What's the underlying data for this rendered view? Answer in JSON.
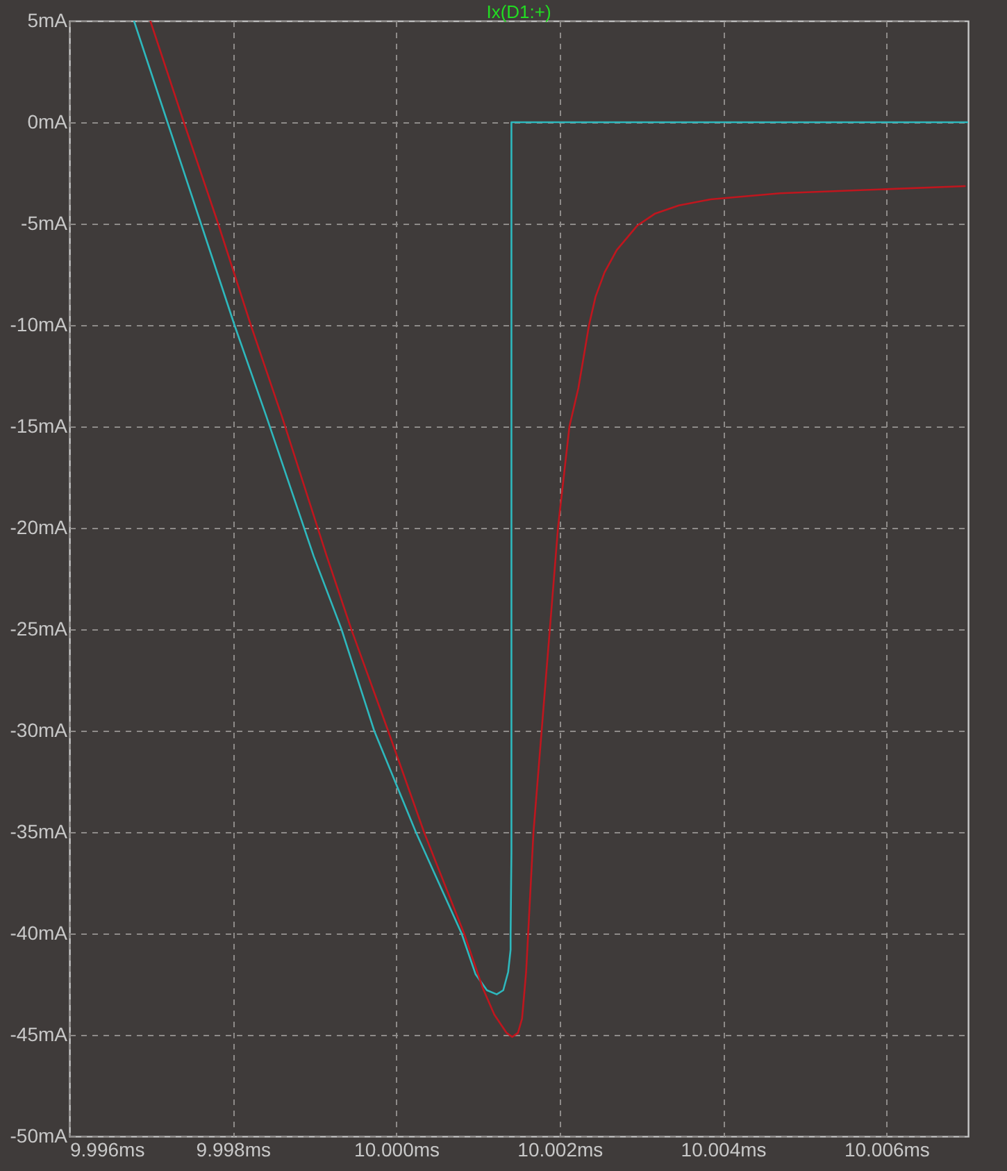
{
  "chart_data": {
    "type": "line",
    "title": "Ix(D1:+)",
    "xlim": [
      9.996,
      10.007
    ],
    "xticks": [
      {
        "value": 9.996,
        "label": "9.996ms"
      },
      {
        "value": 9.998,
        "label": "9.998ms"
      },
      {
        "value": 10.0,
        "label": "10.000ms"
      },
      {
        "value": 10.002,
        "label": "10.002ms"
      },
      {
        "value": 10.004,
        "label": "10.004ms"
      },
      {
        "value": 10.006,
        "label": "10.006ms"
      }
    ],
    "ylim": [
      -50,
      5
    ],
    "yticks": [
      {
        "value": 5,
        "label": "5mA"
      },
      {
        "value": 0,
        "label": "0mA"
      },
      {
        "value": -5,
        "label": "-5mA"
      },
      {
        "value": -10,
        "label": "-10mA"
      },
      {
        "value": -15,
        "label": "-15mA"
      },
      {
        "value": -20,
        "label": "-20mA"
      },
      {
        "value": -25,
        "label": "-25mA"
      },
      {
        "value": -30,
        "label": "-30mA"
      },
      {
        "value": -35,
        "label": "-35mA"
      },
      {
        "value": -40,
        "label": "-40mA"
      },
      {
        "value": -45,
        "label": "-45mA"
      },
      {
        "value": -50,
        "label": "-50mA"
      }
    ],
    "grid": true,
    "marker": "none",
    "line_style": "solid",
    "series": [
      {
        "color": "#2eb8bd",
        "x": [
          9.99679,
          9.9972,
          9.99761,
          9.99802,
          9.99841,
          9.99899,
          9.99933,
          9.99973,
          10.00024,
          10.0008,
          10.00097,
          10.00111,
          10.00123,
          10.00131,
          10.00137,
          10.0014,
          10.0014,
          10.00141,
          10.00141,
          10.007
        ],
        "values": [
          5,
          0,
          -5,
          -10,
          -14.5,
          -21.4,
          -25,
          -30,
          -35,
          -40,
          -42.0,
          -42.8,
          -43.0,
          -42.8,
          -41.9,
          -40.8,
          -40.1,
          -36,
          0,
          0
        ]
      },
      {
        "color": "#c0161e",
        "x": [
          9.99699,
          9.9974,
          9.99782,
          9.99822,
          9.9986,
          9.99915,
          9.99945,
          9.9999,
          10.00034,
          10.00083,
          10.00106,
          10.0012,
          10.00135,
          10.00142,
          10.00149,
          10.00154,
          10.00159,
          10.00168,
          10.00178,
          10.00188,
          10.00198,
          10.00212,
          10.00223,
          10.00236,
          10.00244,
          10.00255,
          10.0027,
          10.00295,
          10.00317,
          10.00346,
          10.00385,
          10.00414,
          10.0047,
          10.006,
          10.00696
        ],
        "values": [
          5,
          0,
          -5,
          -10,
          -14.5,
          -21.4,
          -25,
          -30,
          -35,
          -40,
          -42.7,
          -44.0,
          -44.9,
          -45.1,
          -44.9,
          -44.2,
          -41.9,
          -35,
          -30,
          -25,
          -20,
          -15,
          -13.1,
          -10,
          -8.6,
          -7.4,
          -6.3,
          -5.1,
          -4.5,
          -4.1,
          -3.8,
          -3.7,
          -3.5,
          -3.3,
          -3.15
        ]
      }
    ]
  }
}
